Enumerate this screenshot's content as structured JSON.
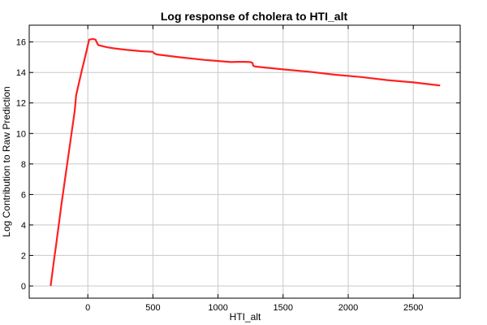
{
  "chart_data": {
    "type": "line",
    "title": "Log response of cholera to HTI_alt",
    "xlabel": "HTI_alt",
    "ylabel": "Log Contribution to Raw Prediction",
    "xlim": [
      -450,
      2860
    ],
    "ylim": [
      -0.8,
      17.1
    ],
    "xticks": [
      0,
      500,
      1000,
      1500,
      2000,
      2500
    ],
    "yticks": [
      0,
      2,
      4,
      6,
      8,
      10,
      12,
      14,
      16
    ],
    "grid": true,
    "line_color": "#ff2020",
    "series": [
      {
        "x": [
          -285,
          -255,
          -245,
          -200,
          -150,
          -100,
          -90,
          -50,
          -10,
          10,
          40,
          60,
          70,
          80,
          100,
          150,
          200,
          300,
          400,
          500,
          510,
          530,
          700,
          900,
          1100,
          1150,
          1200,
          1250,
          1265,
          1270,
          1280,
          1300,
          1500,
          1700,
          1900,
          2100,
          2300,
          2500,
          2700
        ],
        "y": [
          0.05,
          2.0,
          2.6,
          5.5,
          8.5,
          11.5,
          12.5,
          14.0,
          15.4,
          16.15,
          16.2,
          16.15,
          15.95,
          15.8,
          15.75,
          15.65,
          15.58,
          15.48,
          15.4,
          15.35,
          15.25,
          15.18,
          15.0,
          14.82,
          14.68,
          14.7,
          14.7,
          14.68,
          14.62,
          14.45,
          14.4,
          14.38,
          14.2,
          14.05,
          13.85,
          13.7,
          13.5,
          13.35,
          13.15
        ]
      }
    ]
  }
}
